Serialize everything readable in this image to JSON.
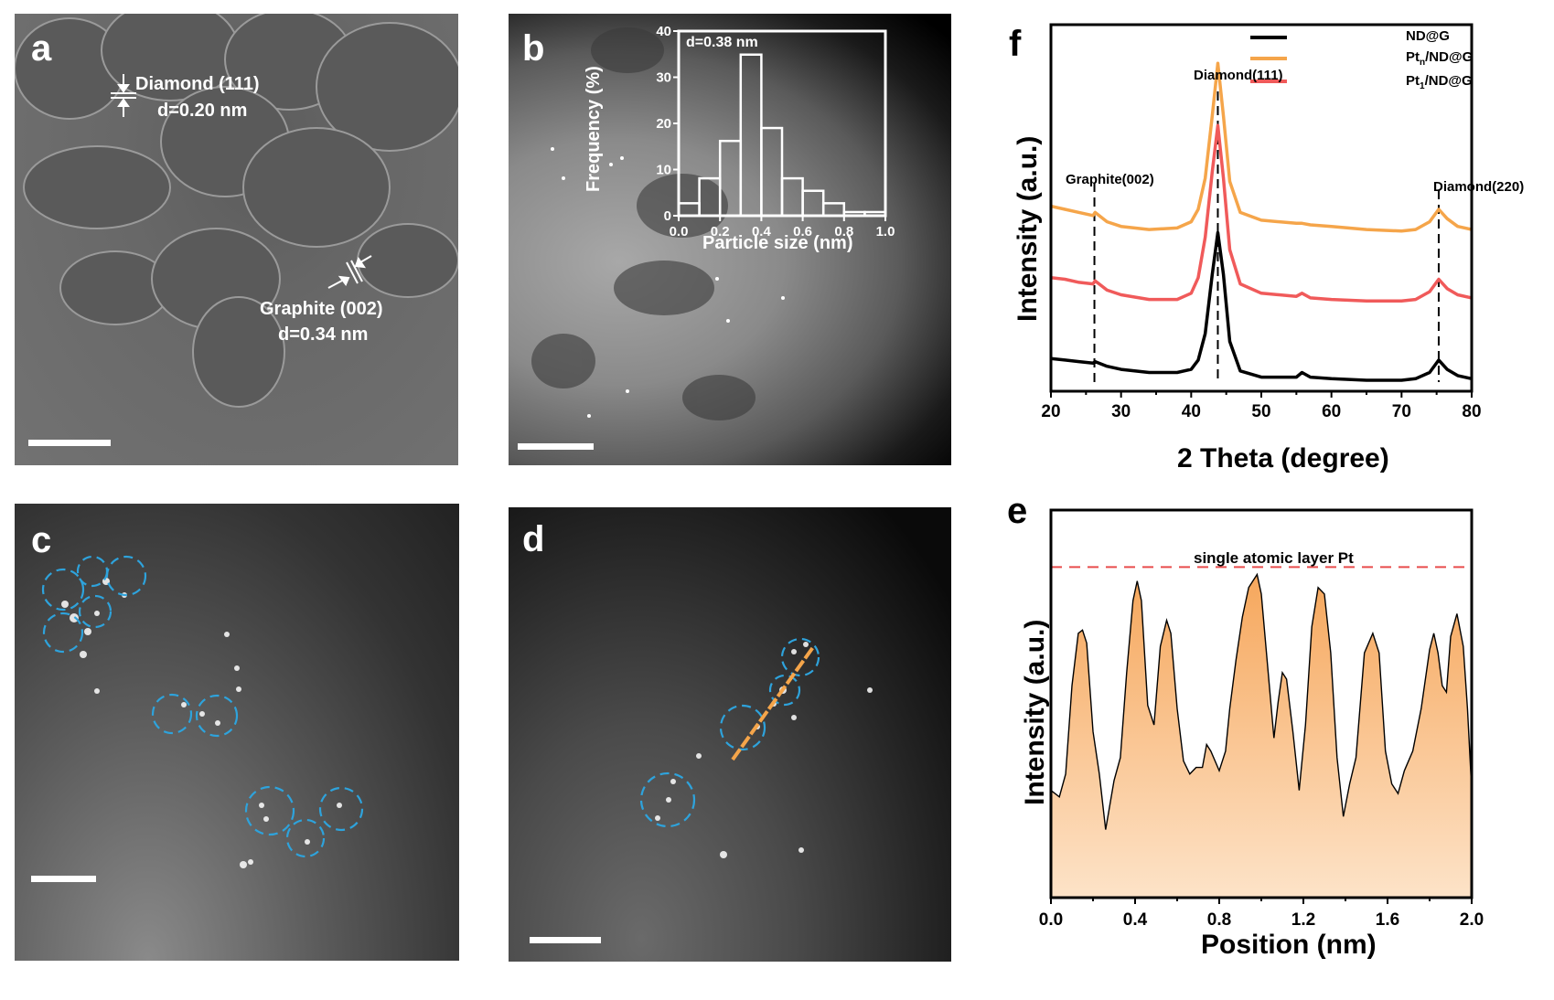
{
  "panels": {
    "a": {
      "label": "a",
      "annotations": [
        {
          "text": "Diamond (111)",
          "sub": "d=0.20 nm"
        },
        {
          "text": "Graphite (002)",
          "sub": "d=0.34 nm"
        }
      ]
    },
    "b": {
      "label": "b",
      "inset_annotation": "d=0.38 nm"
    },
    "c": {
      "label": "c"
    },
    "d": {
      "label": "d"
    },
    "e": {
      "label": "e",
      "annotation": "single atomic layer Pt"
    },
    "f": {
      "label": "f",
      "peak_labels": [
        "Graphite(002)",
        "Diamond(111)",
        "Diamond(220)"
      ]
    }
  },
  "colors": {
    "nd_g": "#000000",
    "ptn": "#f5a54a",
    "pt1": "#f05a5a",
    "fill_top": "#f6a75c",
    "fill_bottom": "#fde3c8",
    "circle": "#2ea3dc",
    "line_d": "#f5a54a",
    "ref_line": "#e84c4c"
  },
  "chart_data": [
    {
      "id": "b-inset",
      "type": "bar",
      "title": "",
      "annotation": "d=0.38 nm",
      "xlabel": "Particle size (nm)",
      "ylabel": "Frequency (%)",
      "categories": [
        "0.0-0.1",
        "0.1-0.2",
        "0.2-0.3",
        "0.3-0.4",
        "0.4-0.5",
        "0.5-0.6",
        "0.6-0.7",
        "0.7-0.8",
        "0.8-0.9",
        "0.9-1.0"
      ],
      "bin_edges": [
        0.0,
        0.1,
        0.2,
        0.3,
        0.4,
        0.5,
        0.6,
        0.7,
        0.8,
        0.9,
        1.0
      ],
      "values": [
        2.7,
        8.1,
        16.2,
        34.9,
        19.0,
        8.1,
        5.4,
        2.7,
        0.8,
        0.8
      ],
      "xlim": [
        0.0,
        1.0
      ],
      "ylim": [
        0,
        40
      ],
      "xticks": [
        "0.0",
        "0.2",
        "0.4",
        "0.6",
        "0.8",
        "1.0"
      ],
      "yticks": [
        "0",
        "10",
        "20",
        "30",
        "40"
      ]
    },
    {
      "id": "f",
      "type": "line",
      "title": "",
      "xlabel": "2 Theta (degree)",
      "ylabel": "Intensity (a.u.)",
      "xlim": [
        20,
        80
      ],
      "xticks": [
        "20",
        "30",
        "40",
        "50",
        "60",
        "70",
        "80"
      ],
      "legend": [
        "ND@G",
        "Pt_n/ND@G",
        "Pt_1/ND@G"
      ],
      "legend_position": "upper right",
      "annotations": [
        {
          "text": "Graphite(002)",
          "x": 26.2
        },
        {
          "text": "Diamond(111)",
          "x": 43.8
        },
        {
          "text": "Diamond(220)",
          "x": 75.3
        }
      ],
      "x": [
        20,
        22,
        24,
        26,
        26.3,
        28,
        30,
        34,
        38,
        40,
        41,
        42,
        43,
        43.8,
        44.6,
        45.5,
        47,
        50,
        55,
        55.8,
        57,
        60,
        65,
        70,
        72,
        74,
        75.3,
        76.5,
        78,
        80
      ],
      "series": [
        {
          "name": "ND@G",
          "color": "#000000",
          "values": [
            0.14,
            0.13,
            0.12,
            0.11,
            0.12,
            0.09,
            0.07,
            0.05,
            0.05,
            0.07,
            0.13,
            0.3,
            0.68,
            0.95,
            0.68,
            0.25,
            0.06,
            0.02,
            0.02,
            0.05,
            0.02,
            0.01,
            0.0,
            0.0,
            0.01,
            0.05,
            0.13,
            0.07,
            0.03,
            0.01
          ]
        },
        {
          "name": "Pt_n/ND@G",
          "color": "#f5a54a",
          "values": [
            1.12,
            1.1,
            1.08,
            1.06,
            1.08,
            1.02,
            0.99,
            0.97,
            0.98,
            1.02,
            1.1,
            1.3,
            1.7,
            2.04,
            1.7,
            1.28,
            1.08,
            1.03,
            1.01,
            1.01,
            1.0,
            0.99,
            0.97,
            0.96,
            0.97,
            1.02,
            1.1,
            1.04,
            0.99,
            0.97
          ]
        },
        {
          "name": "Pt_1/ND@G",
          "color": "#f05a5a",
          "values": [
            0.66,
            0.65,
            0.63,
            0.62,
            0.64,
            0.58,
            0.55,
            0.52,
            0.52,
            0.56,
            0.66,
            0.92,
            1.34,
            1.64,
            1.3,
            0.84,
            0.62,
            0.56,
            0.54,
            0.56,
            0.53,
            0.52,
            0.51,
            0.51,
            0.52,
            0.57,
            0.65,
            0.59,
            0.55,
            0.53
          ]
        }
      ]
    },
    {
      "id": "e",
      "type": "area",
      "title": "",
      "annotation": "single atomic layer Pt",
      "xlabel": "Position (nm)",
      "ylabel": "Intensity (a.u.)",
      "xlim": [
        0.0,
        2.0
      ],
      "xticks": [
        "0.0",
        "0.4",
        "0.8",
        "1.2",
        "1.6",
        "2.0"
      ],
      "reference_line": {
        "y": 0.96,
        "style": "dashed",
        "color": "#e84c4c"
      },
      "x": [
        0.0,
        0.04,
        0.07,
        0.1,
        0.13,
        0.15,
        0.17,
        0.2,
        0.23,
        0.26,
        0.3,
        0.33,
        0.36,
        0.39,
        0.41,
        0.43,
        0.46,
        0.49,
        0.52,
        0.55,
        0.57,
        0.6,
        0.63,
        0.66,
        0.69,
        0.72,
        0.74,
        0.76,
        0.8,
        0.83,
        0.85,
        0.88,
        0.91,
        0.94,
        0.98,
        1.0,
        1.03,
        1.06,
        1.08,
        1.1,
        1.12,
        1.15,
        1.18,
        1.21,
        1.24,
        1.27,
        1.3,
        1.33,
        1.36,
        1.39,
        1.42,
        1.45,
        1.49,
        1.53,
        1.56,
        1.59,
        1.62,
        1.65,
        1.68,
        1.72,
        1.76,
        1.8,
        1.82,
        1.84,
        1.86,
        1.88,
        1.9,
        1.93,
        1.96,
        1.98,
        2.0
      ],
      "values": [
        0.3,
        0.28,
        0.35,
        0.62,
        0.78,
        0.79,
        0.75,
        0.48,
        0.35,
        0.18,
        0.33,
        0.4,
        0.66,
        0.88,
        0.94,
        0.88,
        0.56,
        0.5,
        0.74,
        0.82,
        0.78,
        0.55,
        0.39,
        0.35,
        0.37,
        0.37,
        0.44,
        0.42,
        0.36,
        0.42,
        0.55,
        0.7,
        0.83,
        0.92,
        0.96,
        0.9,
        0.68,
        0.46,
        0.57,
        0.66,
        0.64,
        0.48,
        0.3,
        0.5,
        0.8,
        0.92,
        0.9,
        0.72,
        0.4,
        0.22,
        0.32,
        0.4,
        0.72,
        0.78,
        0.72,
        0.42,
        0.32,
        0.29,
        0.36,
        0.42,
        0.55,
        0.73,
        0.78,
        0.72,
        0.62,
        0.6,
        0.77,
        0.84,
        0.74,
        0.55,
        0.3
      ]
    }
  ]
}
